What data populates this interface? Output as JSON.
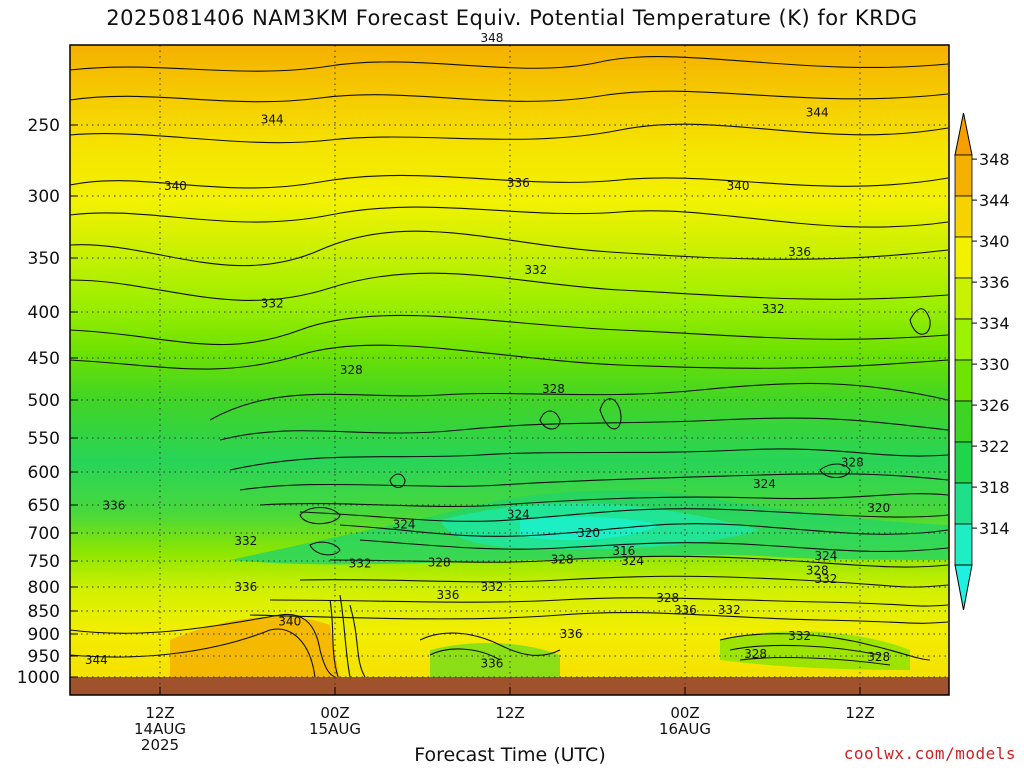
{
  "title": "2025081406 NAM3KM Forecast Equiv. Potential Temperature (K) for KRDG",
  "credit": "coolwx.com/models",
  "chart_data": {
    "type": "contour",
    "title": "2025081406 NAM3KM Forecast Equiv. Potential Temperature (K) for KRDG",
    "xlabel": "Forecast Time (UTC)",
    "ylabel": "",
    "y_ticks": [
      "250",
      "300",
      "350",
      "400",
      "450",
      "500",
      "550",
      "600",
      "650",
      "700",
      "750",
      "800",
      "850",
      "900",
      "950",
      "1000"
    ],
    "x_ticks": [
      {
        "label": "12Z",
        "sub1": "14AUG",
        "sub2": "2025"
      },
      {
        "label": "00Z",
        "sub1": "15AUG",
        "sub2": ""
      },
      {
        "label": "12Z",
        "sub1": "",
        "sub2": ""
      },
      {
        "label": "00Z",
        "sub1": "16AUG",
        "sub2": ""
      },
      {
        "label": "12Z",
        "sub1": "",
        "sub2": ""
      }
    ],
    "colorbar": {
      "levels": [
        "348",
        "344",
        "340",
        "336",
        "334",
        "330",
        "326",
        "322",
        "318",
        "314"
      ],
      "colors": [
        "#f5b100",
        "#f6d200",
        "#f2f200",
        "#c9f200",
        "#9cf200",
        "#6ee400",
        "#3dd424",
        "#20d44c",
        "#1fe08a",
        "#1fedc4"
      ]
    },
    "contour_labels": [
      {
        "text": "348",
        "x": 48,
        "p": 188
      },
      {
        "text": "344",
        "x": 23,
        "p": 246
      },
      {
        "text": "344",
        "x": 85,
        "p": 241
      },
      {
        "text": "340",
        "x": 12,
        "p": 293
      },
      {
        "text": "336",
        "x": 51,
        "p": 291
      },
      {
        "text": "340",
        "x": 76,
        "p": 293
      },
      {
        "text": "336",
        "x": 83,
        "p": 345
      },
      {
        "text": "332",
        "x": 53,
        "p": 361
      },
      {
        "text": "332",
        "x": 23,
        "p": 392
      },
      {
        "text": "332",
        "x": 80,
        "p": 397
      },
      {
        "text": "328",
        "x": 32,
        "p": 464
      },
      {
        "text": "328",
        "x": 55,
        "p": 487
      },
      {
        "text": "328",
        "x": 89,
        "p": 586
      },
      {
        "text": "324",
        "x": 79,
        "p": 618
      },
      {
        "text": "336",
        "x": 5,
        "p": 651
      },
      {
        "text": "324",
        "x": 51,
        "p": 667
      },
      {
        "text": "320",
        "x": 92,
        "p": 655
      },
      {
        "text": "324",
        "x": 38,
        "p": 685
      },
      {
        "text": "320",
        "x": 59,
        "p": 700
      },
      {
        "text": "332",
        "x": 20,
        "p": 714
      },
      {
        "text": "316",
        "x": 63,
        "p": 732
      },
      {
        "text": "324",
        "x": 86,
        "p": 741
      },
      {
        "text": "328",
        "x": 56,
        "p": 747
      },
      {
        "text": "324",
        "x": 64,
        "p": 750
      },
      {
        "text": "332",
        "x": 33,
        "p": 755
      },
      {
        "text": "328",
        "x": 42,
        "p": 753
      },
      {
        "text": "328",
        "x": 85,
        "p": 768
      },
      {
        "text": "332",
        "x": 86,
        "p": 785
      },
      {
        "text": "336",
        "x": 20,
        "p": 800
      },
      {
        "text": "332",
        "x": 48,
        "p": 800
      },
      {
        "text": "336",
        "x": 43,
        "p": 817
      },
      {
        "text": "328",
        "x": 68,
        "p": 823
      },
      {
        "text": "336",
        "x": 70,
        "p": 848
      },
      {
        "text": "332",
        "x": 75,
        "p": 848
      },
      {
        "text": "340",
        "x": 25,
        "p": 873
      },
      {
        "text": "336",
        "x": 57,
        "p": 900
      },
      {
        "text": "332",
        "x": 83,
        "p": 905
      },
      {
        "text": "328",
        "x": 78,
        "p": 946
      },
      {
        "text": "328",
        "x": 92,
        "p": 952
      },
      {
        "text": "344",
        "x": 3,
        "p": 959
      },
      {
        "text": "336",
        "x": 48,
        "p": 968
      }
    ]
  }
}
